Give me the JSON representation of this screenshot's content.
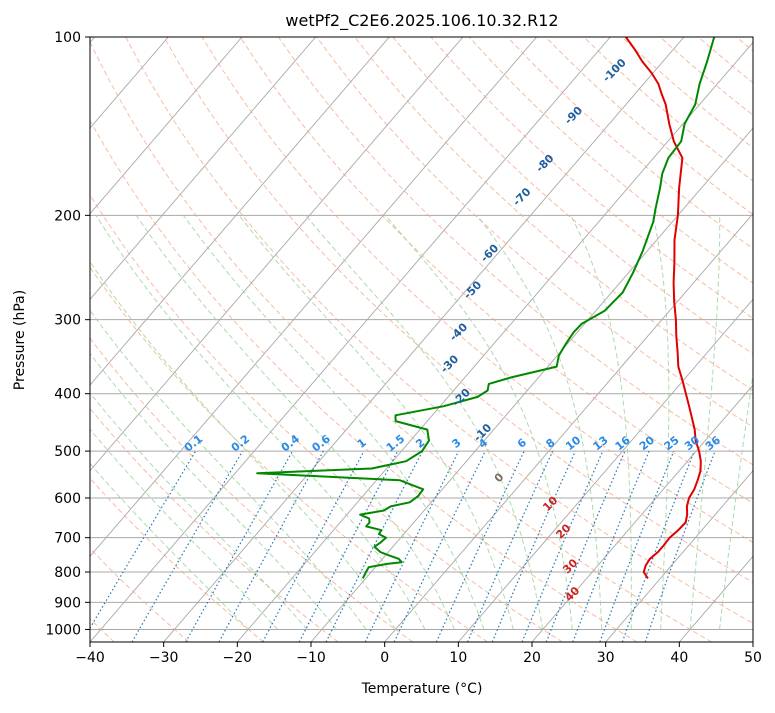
{
  "chart_data": {
    "type": "line",
    "chart_kind": "skew-t",
    "title": "wetPf2_C2E6.2025.106.10.32.R12",
    "xlabel": "Temperature (°C)",
    "ylabel": "Pressure (hPa)",
    "xlim": [
      -40,
      50
    ],
    "ylim": [
      1050,
      100
    ],
    "y_scale": "log",
    "grid": true,
    "x_ticks": [
      -40,
      -30,
      -20,
      -10,
      0,
      10,
      20,
      30,
      40,
      50
    ],
    "y_ticks": [
      100,
      200,
      300,
      400,
      500,
      600,
      700,
      800,
      900,
      1000
    ],
    "series": [
      {
        "color": "#e00000",
        "points": [
          [
            820,
            28.3
          ],
          [
            800,
            27.0
          ],
          [
            780,
            26.5
          ],
          [
            760,
            26.3
          ],
          [
            740,
            26.6
          ],
          [
            720,
            26.6
          ],
          [
            700,
            26.5
          ],
          [
            680,
            26.8
          ],
          [
            660,
            26.9
          ],
          [
            640,
            26.2
          ],
          [
            620,
            25.2
          ],
          [
            600,
            24.5
          ],
          [
            580,
            24.2
          ],
          [
            560,
            23.6
          ],
          [
            540,
            22.9
          ],
          [
            520,
            21.8
          ],
          [
            500,
            20.4
          ],
          [
            480,
            18.7
          ],
          [
            460,
            17.3
          ],
          [
            440,
            15.6
          ],
          [
            420,
            13.8
          ],
          [
            400,
            11.9
          ],
          [
            380,
            9.9
          ],
          [
            360,
            7.7
          ],
          [
            340,
            5.9
          ],
          [
            320,
            3.9
          ],
          [
            300,
            1.9
          ],
          [
            280,
            -0.4
          ],
          [
            260,
            -2.7
          ],
          [
            240,
            -5.0
          ],
          [
            220,
            -7.6
          ],
          [
            200,
            -10.0
          ],
          [
            180,
            -13.0
          ],
          [
            160,
            -16.1
          ],
          [
            150,
            -19.2
          ],
          [
            140,
            -21.9
          ],
          [
            130,
            -24.6
          ],
          [
            125,
            -26.3
          ],
          [
            120,
            -28.0
          ],
          [
            115,
            -30.2
          ],
          [
            110,
            -32.8
          ],
          [
            105,
            -35.2
          ],
          [
            100,
            -37.9
          ]
        ]
      },
      {
        "color": "#008800",
        "points": [
          [
            820,
            -10.4
          ],
          [
            800,
            -10.7
          ],
          [
            785,
            -10.9
          ],
          [
            775,
            -8.8
          ],
          [
            770,
            -7.0
          ],
          [
            760,
            -7.8
          ],
          [
            750,
            -9.5
          ],
          [
            740,
            -11.1
          ],
          [
            725,
            -12.5
          ],
          [
            715,
            -12.2
          ],
          [
            700,
            -12.0
          ],
          [
            690,
            -13.4
          ],
          [
            680,
            -13.5
          ],
          [
            670,
            -16.0
          ],
          [
            660,
            -16.0
          ],
          [
            650,
            -16.5
          ],
          [
            640,
            -18.2
          ],
          [
            630,
            -15.5
          ],
          [
            620,
            -15.0
          ],
          [
            610,
            -12.9
          ],
          [
            595,
            -12.5
          ],
          [
            580,
            -12.6
          ],
          [
            560,
            -16.8
          ],
          [
            545,
            -37.0
          ],
          [
            535,
            -22.0
          ],
          [
            520,
            -18.2
          ],
          [
            500,
            -17.2
          ],
          [
            480,
            -17.5
          ],
          [
            460,
            -19.0
          ],
          [
            445,
            -24.3
          ],
          [
            435,
            -25.0
          ],
          [
            420,
            -19.5
          ],
          [
            405,
            -16.0
          ],
          [
            395,
            -15.4
          ],
          [
            385,
            -16.0
          ],
          [
            375,
            -13.6
          ],
          [
            360,
            -8.8
          ],
          [
            345,
            -9.8
          ],
          [
            330,
            -10.2
          ],
          [
            315,
            -10.5
          ],
          [
            305,
            -10.4
          ],
          [
            290,
            -8.8
          ],
          [
            270,
            -8.5
          ],
          [
            250,
            -9.4
          ],
          [
            230,
            -10.6
          ],
          [
            205,
            -12.6
          ],
          [
            195,
            -13.8
          ],
          [
            180,
            -15.6
          ],
          [
            170,
            -17.0
          ],
          [
            160,
            -18.0
          ],
          [
            150,
            -18.2
          ],
          [
            140,
            -19.8
          ],
          [
            130,
            -20.6
          ],
          [
            120,
            -22.4
          ],
          [
            110,
            -24.0
          ],
          [
            100,
            -25.9
          ]
        ]
      }
    ],
    "dry_adiabat_labels": [
      -100,
      -90,
      -80,
      -70,
      -60,
      -50,
      -40,
      -30,
      -20,
      -10,
      0,
      10,
      20,
      30,
      40
    ],
    "mixing_ratio_labels": [
      "0.1",
      "0.2",
      "0.4",
      "0.6",
      "1",
      "1.5",
      "2",
      "3",
      "4",
      "6",
      "8",
      "10",
      "13",
      "16",
      "20",
      "25",
      "30",
      "36"
    ]
  },
  "style": {
    "temp_color": "#e00000",
    "dewpoint_color": "#008800",
    "isotherm_color": "#a8a8a8",
    "dry_adiabat_color": "#f4a582",
    "moist_adiabat_color": "#9fd39f",
    "mixing_ratio_color": "#1f77b4",
    "adiabat_label_color": "#1f5f9e",
    "mixing_label_color": "#2a8ae6",
    "warm_label_color": "#cc2222"
  }
}
